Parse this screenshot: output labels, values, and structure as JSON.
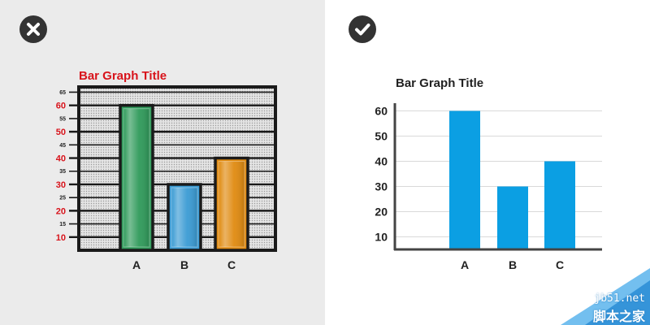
{
  "left_panel": {
    "badge_icon": "x-mark-icon",
    "title": "Bar Graph Title",
    "title_color": "#d8131b",
    "major_ticks": [
      "10",
      "20",
      "30",
      "40",
      "50",
      "60"
    ],
    "minor_ticks": [
      "15",
      "25",
      "35",
      "45",
      "55",
      "65"
    ],
    "bar_colors": [
      "#2f9a5a",
      "#3a9bd4",
      "#e08a10"
    ]
  },
  "right_panel": {
    "badge_icon": "checkmark-icon",
    "title": "Bar Graph Title",
    "ticks": [
      "10",
      "20",
      "30",
      "40",
      "50",
      "60"
    ],
    "bar_color": "#0b9fe3"
  },
  "chart_data": [
    {
      "type": "bar",
      "title": "Bar Graph Title",
      "categories": [
        "A",
        "B",
        "C"
      ],
      "values": [
        60,
        30,
        40
      ],
      "ylim": [
        5,
        67
      ],
      "grid": true,
      "xlabel": "",
      "ylabel": ""
    },
    {
      "type": "bar",
      "title": "Bar Graph Title",
      "categories": [
        "A",
        "B",
        "C"
      ],
      "values": [
        60,
        30,
        40
      ],
      "ylim": [
        5,
        62
      ],
      "grid": true,
      "xlabel": "",
      "ylabel": ""
    }
  ],
  "watermark": {
    "url": "jb51.net",
    "name": "脚本之家"
  }
}
